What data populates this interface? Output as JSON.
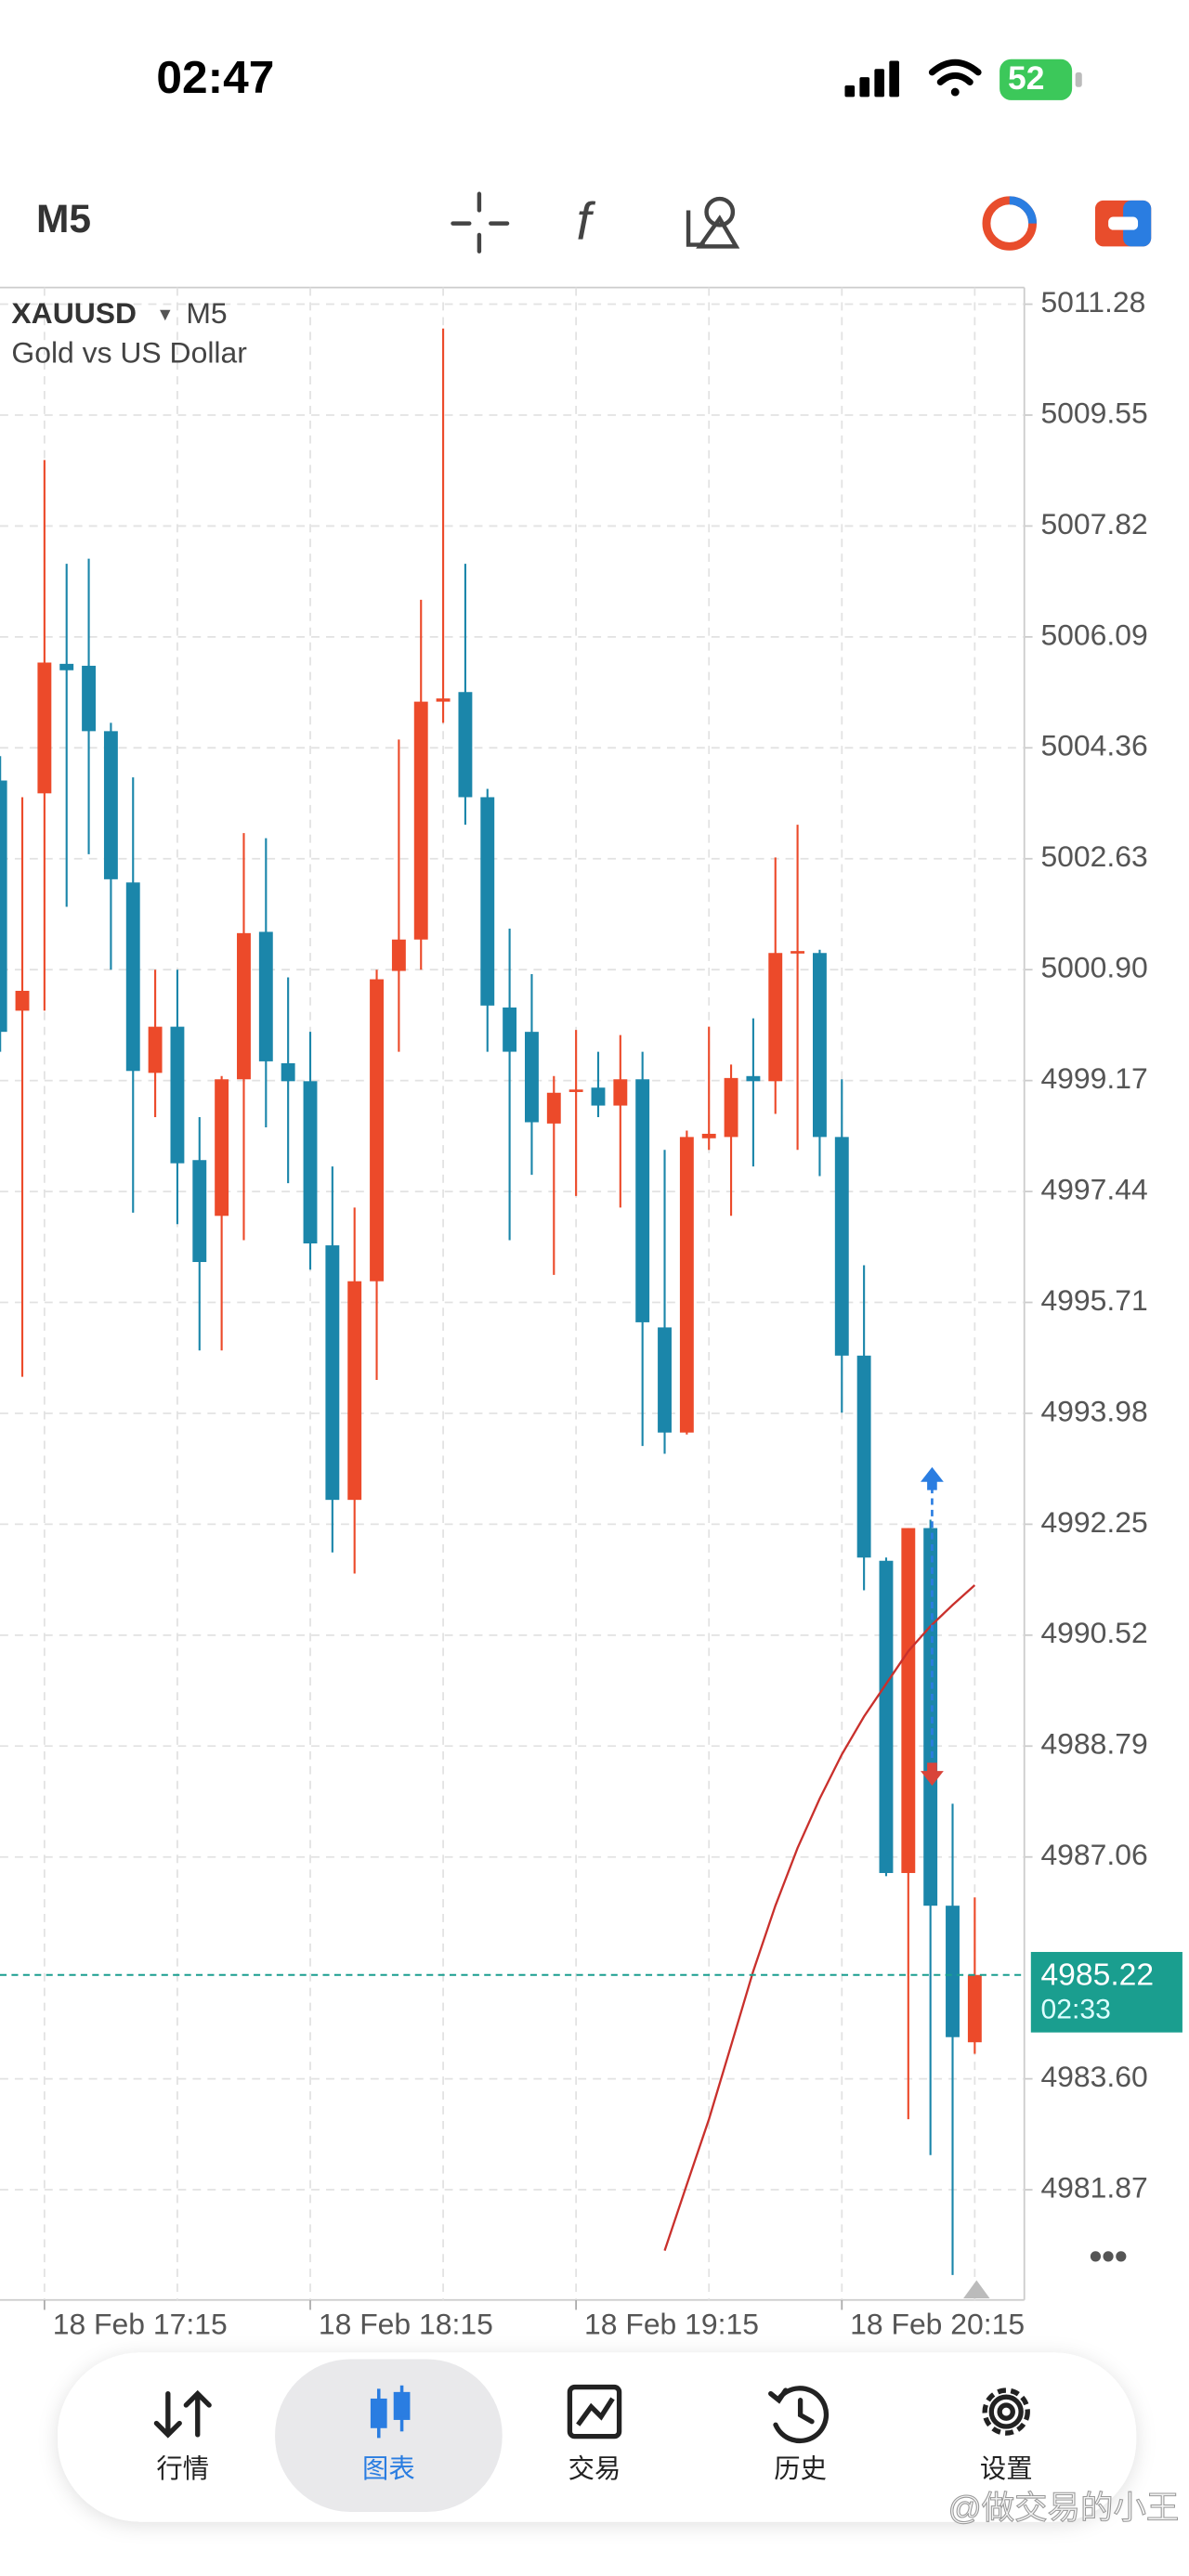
{
  "status": {
    "time": "02:47",
    "battery": "52"
  },
  "toolbar": {
    "timeframe": "M5"
  },
  "nav": [
    "行情",
    "图表",
    "交易",
    "历史",
    "设置"
  ],
  "watermark": "@做交易的小王",
  "chart_data": {
    "type": "candlestick",
    "symbol": "XAUUSD",
    "timeframe": "M5",
    "subtitle": "Gold vs US Dollar",
    "categories": [
      null,
      null,
      "18 Feb 17:15",
      null,
      null,
      null,
      null,
      null,
      null,
      null,
      null,
      null,
      null,
      null,
      "18 Feb 18:15",
      null,
      null,
      null,
      null,
      null,
      null,
      null,
      null,
      null,
      null,
      null,
      "18 Feb 19:15",
      null,
      null,
      null,
      null,
      null,
      null,
      null,
      null,
      null,
      null,
      null,
      "18 Feb 20:15",
      null,
      null,
      null,
      null,
      null,
      null
    ],
    "open": [
      5003.85,
      5000.26,
      5003.65,
      5005.67,
      5005.64,
      5004.62,
      5002.26,
      4999.29,
      5000.01,
      4997.93,
      4997.06,
      4999.19,
      5001.49,
      4999.44,
      4999.16,
      4996.6,
      4992.63,
      4996.04,
      5000.88,
      5001.37,
      5005.08,
      5005.23,
      5003.59,
      5000.31,
      4999.93,
      4998.5,
      4999.01,
      4999.06,
      4998.78,
      4999.19,
      4995.32,
      4993.68,
      4998.27,
      4998.29,
      4999.24,
      4999.16,
      5001.16,
      5001.16,
      4998.29,
      4994.88,
      4991.68,
      4986.81,
      4992.19,
      4986.3,
      4984.17
    ],
    "high": [
      5004.23,
      5003.59,
      5008.85,
      5007.23,
      5007.31,
      5004.75,
      5003.9,
      5000.9,
      5000.9,
      4998.6,
      4999.24,
      5003.03,
      5002.95,
      5000.78,
      4999.93,
      4997.83,
      4997.19,
      5000.9,
      5004.49,
      5006.67,
      5010.9,
      5007.23,
      5003.72,
      5001.54,
      5000.83,
      4999.24,
      4999.96,
      4999.62,
      4999.88,
      4999.62,
      4998.09,
      4998.39,
      5000.01,
      4999.42,
      5000.14,
      5002.65,
      5003.16,
      5001.21,
      4999.19,
      4996.29,
      4991.73,
      4992.19,
      4992.32,
      4987.89,
      4986.43
    ],
    "low": [
      4999.62,
      4994.55,
      5000.26,
      5001.88,
      5002.7,
      5000.9,
      4997.11,
      4998.6,
      4996.93,
      4994.96,
      4994.96,
      4996.68,
      4998.44,
      4997.57,
      4996.22,
      4991.81,
      4991.48,
      4994.5,
      4999.62,
      5000.9,
      5004.75,
      5003.16,
      4999.62,
      4996.68,
      4997.7,
      4996.14,
      4997.37,
      4998.6,
      4997.19,
      4993.47,
      4993.35,
      4993.65,
      4998.09,
      4997.06,
      4997.83,
      4998.65,
      4998.09,
      4997.68,
      4993.99,
      4991.22,
      4986.76,
      4982.97,
      4982.41,
      4980.54,
      4983.99
    ],
    "close": [
      4999.93,
      5000.57,
      5005.69,
      5005.57,
      5004.62,
      5002.31,
      4999.32,
      5000.01,
      4997.88,
      4996.34,
      4999.19,
      5001.47,
      4999.47,
      4999.16,
      4996.63,
      4992.63,
      4996.04,
      5000.75,
      5001.37,
      5005.08,
      5005.13,
      5003.59,
      5000.34,
      4999.62,
      4998.52,
      4998.98,
      4999.03,
      4998.78,
      4999.19,
      4995.4,
      4993.68,
      4998.29,
      4998.34,
      4999.21,
      4999.16,
      5001.16,
      5001.19,
      4998.29,
      4994.88,
      4991.73,
      4986.81,
      4992.19,
      4986.3,
      4984.25,
      4985.22
    ],
    "up_color": "#ec4a2a",
    "down_color": "#1b86aa",
    "overlay": {
      "color": "#c9302c",
      "values": [
        null,
        null,
        null,
        null,
        null,
        null,
        null,
        null,
        null,
        null,
        null,
        null,
        null,
        null,
        null,
        null,
        null,
        null,
        null,
        null,
        null,
        null,
        null,
        null,
        null,
        null,
        null,
        null,
        null,
        null,
        4980.92,
        4981.95,
        4982.97,
        4984.12,
        4985.28,
        4986.3,
        4987.2,
        4987.97,
        4988.66,
        4989.25,
        4989.76,
        4990.27,
        4990.66,
        4990.99,
        4991.3
      ]
    },
    "ylim": [
      4980.15,
      5011.54
    ],
    "yticks": [
      5011.28,
      5009.55,
      5007.82,
      5006.09,
      5004.36,
      5002.63,
      {
        "value": 5000.9,
        "label": "5000.90"
      },
      4999.17,
      4997.44,
      4995.71,
      4993.98,
      4992.25,
      4990.52,
      4988.79,
      4987.06,
      {
        "value": 4983.6,
        "label": "4983.60"
      },
      4981.87
    ],
    "grid": true,
    "current_price": 4985.22,
    "current_time_label": "02:33",
    "current_color": "#1a9e8f"
  }
}
